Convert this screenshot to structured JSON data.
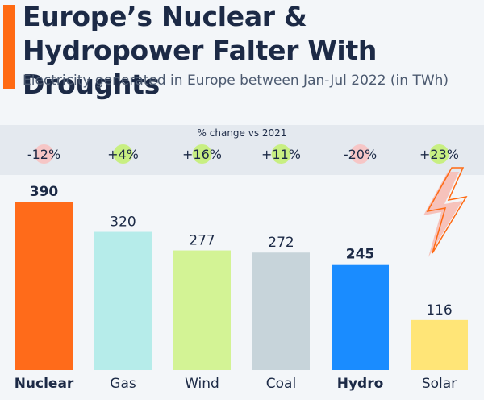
{
  "title": "Europe’s Nuclear & Hydropower Falter With Droughts",
  "subtitle": "Electricity generated in Europe between Jan-Jul 2022 (in TWh)",
  "change_label": "% change vs 2021",
  "colors": {
    "accent": "#ff6a13",
    "positive_dot": "#c8ef82",
    "negative_dot": "#f6c6c6"
  },
  "chart_data": {
    "type": "bar",
    "title": "Europe’s Nuclear & Hydropower Falter With Droughts",
    "subtitle": "Electricity generated in Europe between Jan-Jul 2022 (in TWh)",
    "categories": [
      "Nuclear",
      "Gas",
      "Wind",
      "Coal",
      "Hydro",
      "Solar"
    ],
    "values": [
      390,
      320,
      277,
      272,
      245,
      116
    ],
    "value_labels": [
      "390",
      "320",
      "277",
      "272",
      "245",
      "116"
    ],
    "change_vs_2021": [
      "-12%",
      "+4%",
      "+16%",
      "+11%",
      "-20%",
      "+23%"
    ],
    "change_sign": [
      "negative",
      "positive",
      "positive",
      "positive",
      "negative",
      "positive"
    ],
    "colors": [
      "#ff6b1a",
      "#b6ecea",
      "#d3f395",
      "#c7d4da",
      "#1a8cff",
      "#ffe577"
    ],
    "highlighted": [
      "Nuclear",
      "Hydro"
    ],
    "ylim": [
      0,
      390
    ],
    "xlabel": "",
    "ylabel": ""
  }
}
